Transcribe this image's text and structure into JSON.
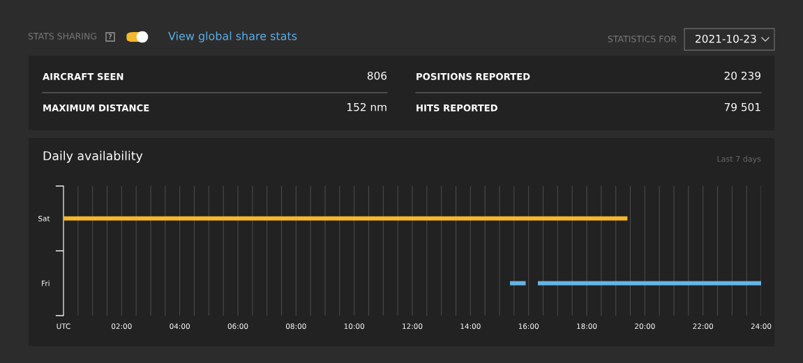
{
  "chart_data": [
    {
      "type": "other",
      "annotations": [
        "STATS SHARING",
        "?",
        "View global share stats",
        "STATISTICS FOR",
        "2021-10-23",
        "AIRCRAFT SEEN",
        "806",
        "MAXIMUM DISTANCE",
        "152 nm",
        "POSITIONS REPORTED",
        "20 239",
        "HITS REPORTED",
        "79 501"
      ]
    },
    {
      "type": "bar",
      "orientation": "horizontal",
      "title": "Daily availability",
      "annotations": [
        "Last 7 days"
      ],
      "categories": [
        "Sat",
        "Fri"
      ],
      "series": [
        {
          "colors": [
            "#f5b82e",
            "#64b5e6"
          ],
          "base": [
            0,
            15.36
          ],
          "values": [
            19.4,
            0.54
          ]
        },
        {
          "colors": [
            "#f5b82e",
            "#64b5e6"
          ],
          "base": [
            null,
            16.32
          ],
          "values": [
            null,
            7.68
          ]
        }
      ],
      "xlim": [
        0,
        24
      ],
      "xticks": [
        {
          "value": 0,
          "label": "UTC"
        },
        {
          "value": 0.5,
          "label": null
        },
        {
          "value": 1,
          "label": null
        },
        {
          "value": 1.5,
          "label": null
        },
        {
          "value": 2,
          "label": "02:00"
        },
        {
          "value": 2.5,
          "label": null
        },
        {
          "value": 3,
          "label": null
        },
        {
          "value": 3.5,
          "label": null
        },
        {
          "value": 4,
          "label": "04:00"
        },
        {
          "value": 4.5,
          "label": null
        },
        {
          "value": 5,
          "label": null
        },
        {
          "value": 5.5,
          "label": null
        },
        {
          "value": 6,
          "label": "06:00"
        },
        {
          "value": 6.5,
          "label": null
        },
        {
          "value": 7,
          "label": null
        },
        {
          "value": 7.5,
          "label": null
        },
        {
          "value": 8,
          "label": "08:00"
        },
        {
          "value": 8.5,
          "label": null
        },
        {
          "value": 9,
          "label": null
        },
        {
          "value": 9.5,
          "label": null
        },
        {
          "value": 10,
          "label": "10:00"
        },
        {
          "value": 10.5,
          "label": null
        },
        {
          "value": 11,
          "label": null
        },
        {
          "value": 11.5,
          "label": null
        },
        {
          "value": 12,
          "label": "12:00"
        },
        {
          "value": 12.5,
          "label": null
        },
        {
          "value": 13,
          "label": null
        },
        {
          "value": 13.5,
          "label": null
        },
        {
          "value": 14,
          "label": "14:00"
        },
        {
          "value": 14.5,
          "label": null
        },
        {
          "value": 15,
          "label": null
        },
        {
          "value": 15.5,
          "label": null
        },
        {
          "value": 16,
          "label": "16:00"
        },
        {
          "value": 16.5,
          "label": null
        },
        {
          "value": 17,
          "label": null
        },
        {
          "value": 17.5,
          "label": null
        },
        {
          "value": 18,
          "label": "18:00"
        },
        {
          "value": 18.5,
          "label": null
        },
        {
          "value": 19,
          "label": null
        },
        {
          "value": 19.5,
          "label": null
        },
        {
          "value": 20,
          "label": "20:00"
        },
        {
          "value": 20.5,
          "label": null
        },
        {
          "value": 21,
          "label": null
        },
        {
          "value": 21.5,
          "label": null
        },
        {
          "value": 22,
          "label": "22:00"
        },
        {
          "value": 22.5,
          "label": null
        },
        {
          "value": 23,
          "label": null
        },
        {
          "value": 23.5,
          "label": null
        },
        {
          "value": 24,
          "label": "24:00"
        }
      ],
      "grid": "x"
    }
  ]
}
